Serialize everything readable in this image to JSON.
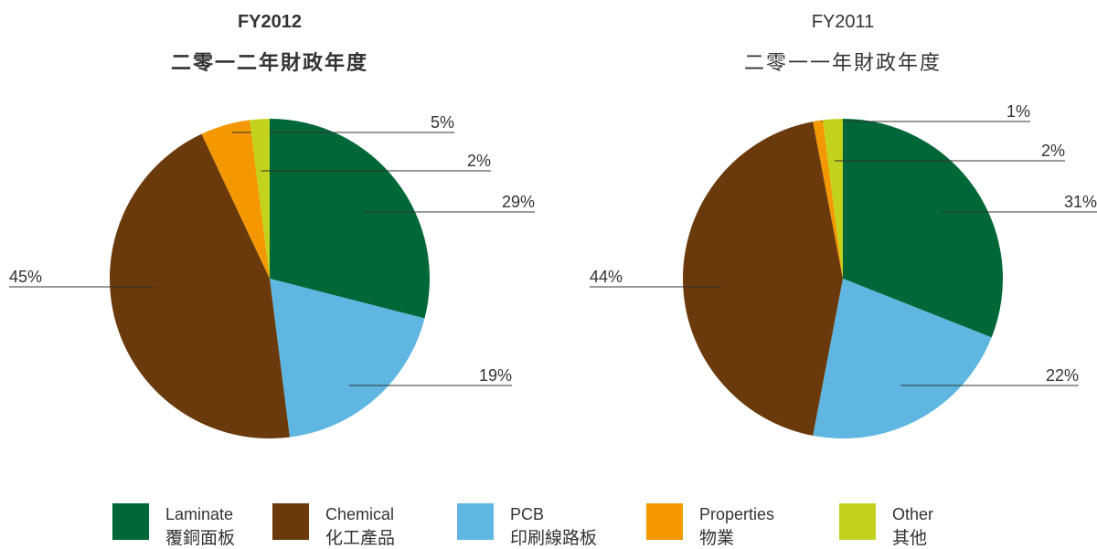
{
  "chart_data": [
    {
      "type": "pie",
      "title": "FY2012",
      "subtitle": "二零一二年財政年度",
      "values": [
        29,
        19,
        45,
        5,
        2
      ],
      "value_labels": [
        "29%",
        "19%",
        "45%",
        "5%",
        "2%"
      ],
      "colors": [
        "#006838",
        "#5fb7e1",
        "#6b3a0c",
        "#f39800",
        "#c3d21c"
      ]
    },
    {
      "type": "pie",
      "title": "FY2011",
      "subtitle": "二零一一年財政年度",
      "values": [
        31,
        22,
        44,
        1,
        2
      ],
      "value_labels": [
        "31%",
        "22%",
        "44%",
        "1%",
        "2%"
      ],
      "colors": [
        "#006838",
        "#5fb7e1",
        "#6b3a0c",
        "#f39800",
        "#c3d21c"
      ]
    }
  ],
  "legend": [
    {
      "name": "Laminate",
      "name_zh": "覆銅面板",
      "color": "#006838"
    },
    {
      "name": "Chemical",
      "name_zh": "化工產品",
      "color": "#6b3a0c"
    },
    {
      "name": "PCB",
      "name_zh": "印刷線路板",
      "color": "#5fb7e1"
    },
    {
      "name": "Properties",
      "name_zh": "物業",
      "color": "#f39800"
    },
    {
      "name": "Other",
      "name_zh": "其他",
      "color": "#c3d21c"
    }
  ]
}
